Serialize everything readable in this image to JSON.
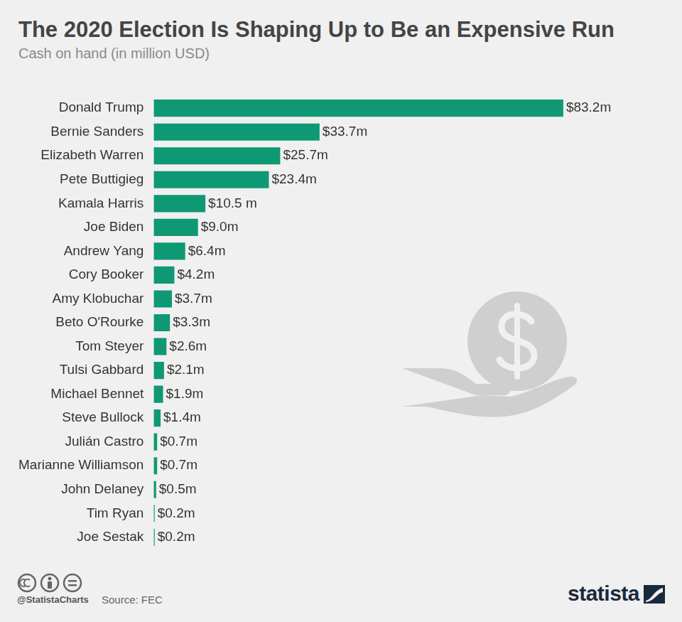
{
  "chart_data": {
    "type": "bar",
    "title": "The 2020 Election Is Shaping Up to Be an Expensive Run",
    "subtitle": "Cash on hand (in million USD)",
    "orientation": "horizontal",
    "categories": [
      "Donald Trump",
      "Bernie Sanders",
      "Elizabeth Warren",
      "Pete Buttigieg",
      "Kamala Harris",
      "Joe Biden",
      "Andrew Yang",
      "Cory Booker",
      "Amy Klobuchar",
      "Beto O'Rourke",
      "Tom Steyer",
      "Tulsi Gabbard",
      "Michael Bennet",
      "Steve Bullock",
      "Julián Castro",
      "Marianne Williamson",
      "John Delaney",
      "Tim Ryan",
      "Joe Sestak"
    ],
    "values": [
      83.2,
      33.7,
      25.7,
      23.4,
      10.5,
      9.0,
      6.4,
      4.2,
      3.7,
      3.3,
      2.6,
      2.1,
      1.9,
      1.4,
      0.7,
      0.7,
      0.5,
      0.2,
      0.2
    ],
    "value_labels": [
      "$83.2m",
      "$33.7m",
      "$25.7m",
      "$23.4m",
      "$10.5 m",
      "$9.0m",
      "$6.4m",
      "$4.2m",
      "$3.7m",
      "$3.3m",
      "$2.6m",
      "$2.1m",
      "$1.9m",
      "$1.4m",
      "$0.7m",
      "$0.7m",
      "$0.5m",
      "$0.2m",
      "$0.2m"
    ],
    "color": "#0f9874",
    "data_labels": true,
    "grid": false,
    "tick_labels": "y",
    "credit": "@StatistaCharts",
    "source": "Source: FEC",
    "logo": "statista"
  }
}
